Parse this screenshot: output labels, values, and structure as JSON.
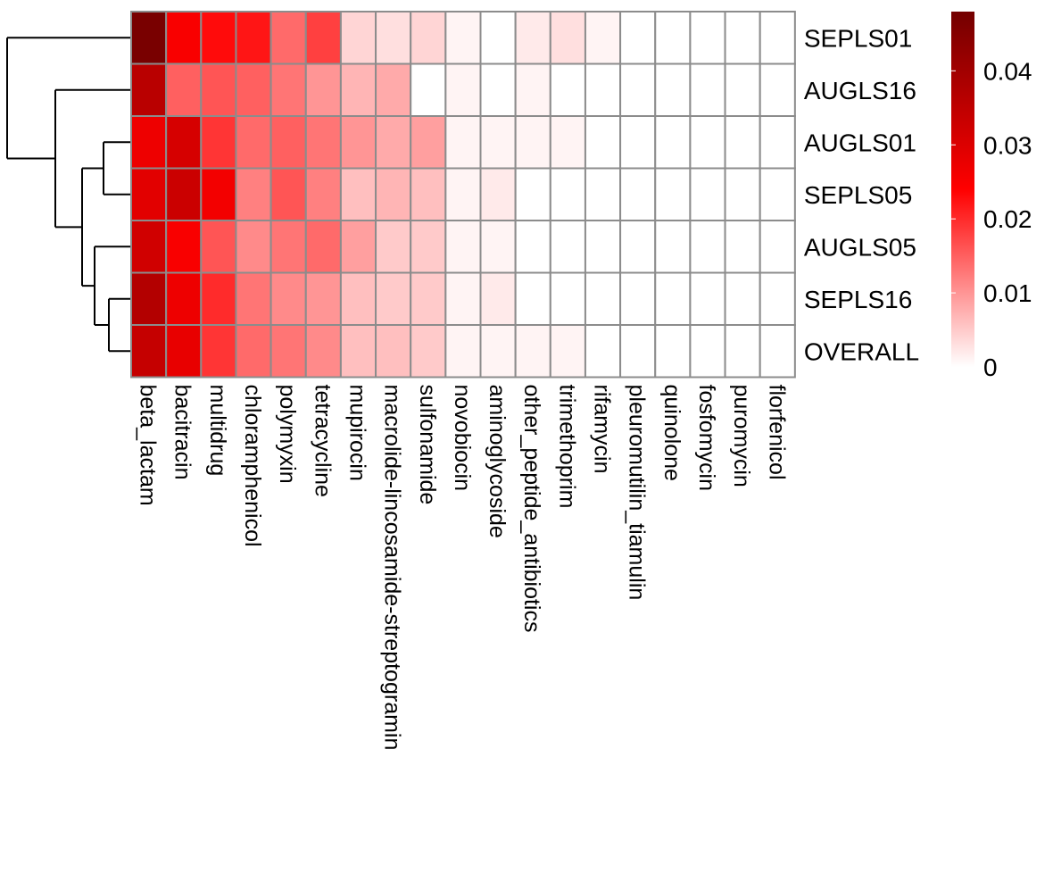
{
  "chart_data": {
    "type": "heatmap",
    "title": "",
    "xlabel": "",
    "ylabel": "",
    "rows": [
      "SEPLS01",
      "AUGLS16",
      "AUGLS01",
      "SEPLS05",
      "AUGLS05",
      "SEPLS16",
      "OVERALL"
    ],
    "columns": [
      "beta_lactam",
      "bacitracin",
      "multidrug",
      "chloramphenicol",
      "polymyxin",
      "tetracycline",
      "mupirocin",
      "macrolide-lincosamide-streptogramin",
      "sulfonamide",
      "novobiocin",
      "aminoglycoside",
      "other_peptide_antibiotics",
      "trimethoprim",
      "rifamycin",
      "pleuromutilin_tiamulin",
      "quinolone",
      "fosfomycin",
      "puromycin",
      "florfenicol"
    ],
    "values": [
      [
        0.047,
        0.025,
        0.023,
        0.022,
        0.014,
        0.018,
        0.004,
        0.003,
        0.004,
        0.001,
        0.0,
        0.002,
        0.003,
        0.001,
        0.0,
        0.0,
        0.0,
        0.0,
        0.0
      ],
      [
        0.036,
        0.015,
        0.016,
        0.015,
        0.013,
        0.01,
        0.007,
        0.008,
        0.0,
        0.001,
        0.0,
        0.001,
        0.0,
        0.0,
        0.0,
        0.0,
        0.0,
        0.0,
        0.0
      ],
      [
        0.027,
        0.031,
        0.019,
        0.014,
        0.015,
        0.013,
        0.01,
        0.008,
        0.009,
        0.001,
        0.001,
        0.001,
        0.001,
        0.0,
        0.0,
        0.0,
        0.0,
        0.0,
        0.0
      ],
      [
        0.029,
        0.033,
        0.026,
        0.012,
        0.016,
        0.012,
        0.006,
        0.007,
        0.006,
        0.001,
        0.002,
        0.0,
        0.0,
        0.0,
        0.0,
        0.0,
        0.0,
        0.0,
        0.0
      ],
      [
        0.032,
        0.025,
        0.016,
        0.011,
        0.013,
        0.014,
        0.009,
        0.005,
        0.005,
        0.001,
        0.001,
        0.0,
        0.0,
        0.0,
        0.0,
        0.0,
        0.0,
        0.0,
        0.0
      ],
      [
        0.037,
        0.027,
        0.02,
        0.013,
        0.011,
        0.01,
        0.006,
        0.005,
        0.005,
        0.001,
        0.002,
        0.0,
        0.0,
        0.0,
        0.0,
        0.0,
        0.0,
        0.0,
        0.0
      ],
      [
        0.034,
        0.028,
        0.019,
        0.014,
        0.013,
        0.011,
        0.006,
        0.006,
        0.005,
        0.001,
        0.001,
        0.001,
        0.001,
        0.0,
        0.0,
        0.0,
        0.0,
        0.0,
        0.0
      ]
    ],
    "color_scale": {
      "min": 0,
      "max": 0.048,
      "stops": [
        {
          "value": 0,
          "color": "#ffffff"
        },
        {
          "value": 0.024,
          "color": "#ff0000"
        },
        {
          "value": 0.048,
          "color": "#730000"
        }
      ]
    },
    "legend": {
      "position": "right",
      "ticks": [
        0,
        0.01,
        0.02,
        0.03,
        0.04
      ],
      "tick_labels": [
        "0",
        "0.01",
        "0.02",
        "0.03",
        "0.04"
      ]
    },
    "cell_border_color": "#8c8c8c",
    "row_dendrogram": {
      "position": "left",
      "branches": [
        [
          [
            "SEPLS01",
            "AUGLS16"
          ],
          [
            [
              "AUGLS01",
              "SEPLS05"
            ],
            [
              "AUGLS05",
              [
                "SEPLS16",
                "OVERALL"
              ]
            ]
          ]
        ]
      ]
    },
    "grid": true
  }
}
